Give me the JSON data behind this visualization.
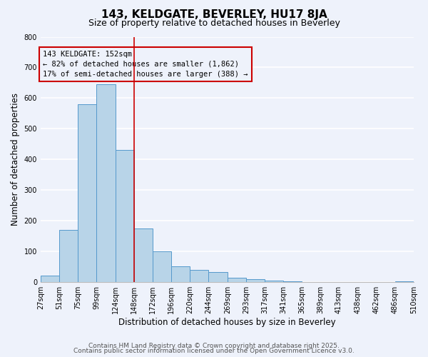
{
  "title": "143, KELDGATE, BEVERLEY, HU17 8JA",
  "subtitle": "Size of property relative to detached houses in Beverley",
  "xlabel": "Distribution of detached houses by size in Beverley",
  "ylabel": "Number of detached properties",
  "bar_left_edges": [
    27,
    51,
    75,
    99,
    124,
    148,
    172,
    196,
    220,
    244,
    269,
    293,
    317,
    341,
    365,
    389,
    413,
    438,
    462,
    486
  ],
  "bar_widths": [
    24,
    24,
    24,
    25,
    24,
    24,
    24,
    24,
    24,
    25,
    24,
    24,
    24,
    24,
    24,
    24,
    25,
    24,
    24,
    24
  ],
  "bar_heights": [
    20,
    170,
    580,
    645,
    430,
    173,
    100,
    50,
    40,
    33,
    13,
    8,
    3,
    1,
    0,
    0,
    0,
    0,
    0,
    2
  ],
  "tick_labels": [
    "27sqm",
    "51sqm",
    "75sqm",
    "99sqm",
    "124sqm",
    "148sqm",
    "172sqm",
    "196sqm",
    "220sqm",
    "244sqm",
    "269sqm",
    "293sqm",
    "317sqm",
    "341sqm",
    "365sqm",
    "389sqm",
    "413sqm",
    "438sqm",
    "462sqm",
    "486sqm",
    "510sqm"
  ],
  "tick_positions": [
    27,
    51,
    75,
    99,
    124,
    148,
    172,
    196,
    220,
    244,
    269,
    293,
    317,
    341,
    365,
    389,
    413,
    438,
    462,
    486,
    510
  ],
  "ylim": [
    0,
    800
  ],
  "yticks": [
    0,
    100,
    200,
    300,
    400,
    500,
    600,
    700,
    800
  ],
  "bar_color": "#b8d4e8",
  "bar_edge_color": "#5599cc",
  "vline_x": 148,
  "vline_color": "#cc0000",
  "annotation_title": "143 KELDGATE: 152sqm",
  "annotation_line1": "← 82% of detached houses are smaller (1,862)",
  "annotation_line2": "17% of semi-detached houses are larger (388) →",
  "annotation_box_color": "#cc0000",
  "footer1": "Contains HM Land Registry data © Crown copyright and database right 2025.",
  "footer2": "Contains public sector information licensed under the Open Government Licence v3.0.",
  "bg_color": "#eef2fb",
  "grid_color": "#ffffff",
  "title_fontsize": 11,
  "subtitle_fontsize": 9,
  "axis_label_fontsize": 8.5,
  "tick_fontsize": 7,
  "annotation_fontsize": 7.5,
  "footer_fontsize": 6.5
}
